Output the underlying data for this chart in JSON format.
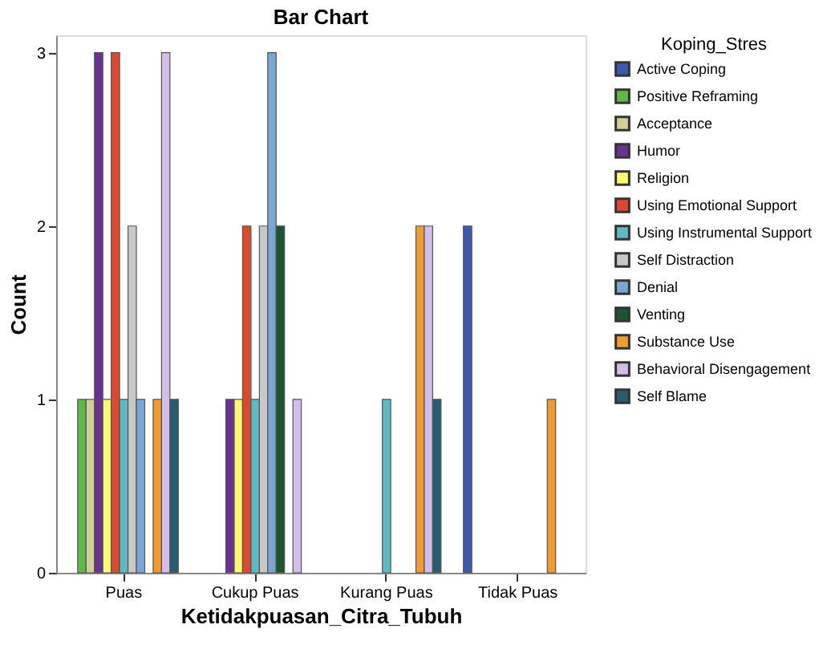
{
  "chart_data": {
    "type": "bar",
    "title": "Bar Chart",
    "xlabel": "Ketidakpuasan_Citra_Tubuh",
    "ylabel": "Count",
    "legend_title": "Koping_Stres",
    "legend": "right",
    "grid": false,
    "categories": [
      "Puas",
      "Cukup Puas",
      "Kurang Puas",
      "Tidak Puas"
    ],
    "ylim": [
      0,
      3.1
    ],
    "yticks": [
      0,
      1,
      2,
      3
    ],
    "series": [
      {
        "name": "Active Coping",
        "color": "#3e58ac",
        "values": [
          null,
          null,
          null,
          2
        ]
      },
      {
        "name": "Positive Reframing",
        "color": "#5fb946",
        "values": [
          1,
          null,
          null,
          null
        ]
      },
      {
        "name": "Acceptance",
        "color": "#d3ce97",
        "values": [
          1,
          null,
          null,
          null
        ]
      },
      {
        "name": "Humor",
        "color": "#68328e",
        "values": [
          3,
          1,
          null,
          null
        ]
      },
      {
        "name": "Religion",
        "color": "#fbf873",
        "values": [
          1,
          1,
          null,
          null
        ]
      },
      {
        "name": "Using Emotional Support",
        "color": "#dd4831",
        "values": [
          3,
          2,
          null,
          null
        ]
      },
      {
        "name": "Using Instrumental Support",
        "color": "#5fb9c1",
        "values": [
          1,
          1,
          1,
          null
        ]
      },
      {
        "name": "Self Distraction",
        "color": "#c8c8c8",
        "values": [
          2,
          2,
          null,
          null
        ]
      },
      {
        "name": "Denial",
        "color": "#7aa6d6",
        "values": [
          1,
          3,
          null,
          null
        ]
      },
      {
        "name": "Venting",
        "color": "#1d5533",
        "values": [
          null,
          2,
          null,
          null
        ]
      },
      {
        "name": "Substance Use",
        "color": "#ef9a33",
        "values": [
          1,
          null,
          2,
          1
        ]
      },
      {
        "name": "Behavioral Disengagement",
        "color": "#d2bee9",
        "values": [
          3,
          1,
          2,
          null
        ]
      },
      {
        "name": "Self Blame",
        "color": "#275d6e",
        "values": [
          1,
          null,
          1,
          null
        ]
      }
    ]
  }
}
